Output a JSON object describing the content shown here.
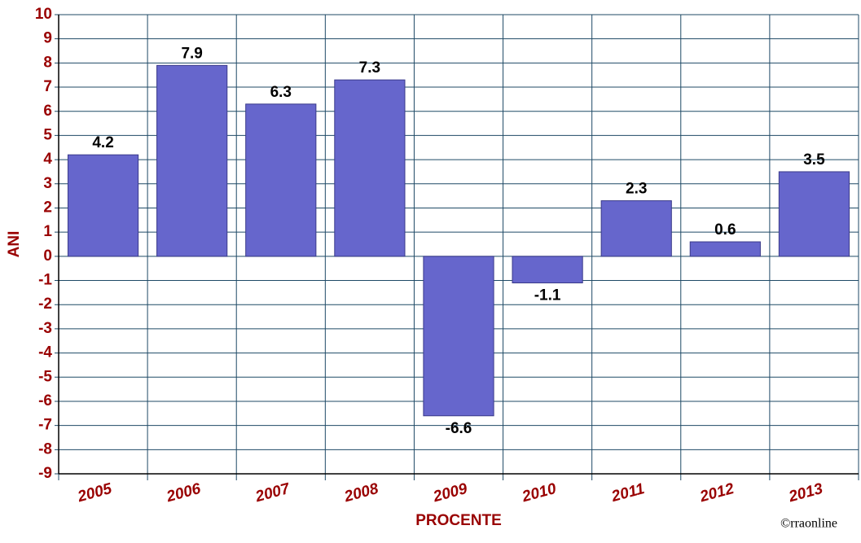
{
  "chart_data": {
    "type": "bar",
    "categories": [
      "2005",
      "2006",
      "2007",
      "2008",
      "2009",
      "2010",
      "2011",
      "2012",
      "2013"
    ],
    "values": [
      4.2,
      7.9,
      6.3,
      7.3,
      -6.6,
      -1.1,
      2.3,
      0.6,
      3.5
    ],
    "color": "#6666cc",
    "ylim": [
      -9,
      10
    ],
    "yticks": [
      -9,
      -8,
      -7,
      -6,
      -5,
      -4,
      -3,
      -2,
      -1,
      0,
      1,
      2,
      3,
      4,
      5,
      6,
      7,
      8,
      9,
      10
    ],
    "ylabel": "ANI",
    "xlabel": "PROCENTE",
    "credit": "©rraonline",
    "grid": true
  }
}
